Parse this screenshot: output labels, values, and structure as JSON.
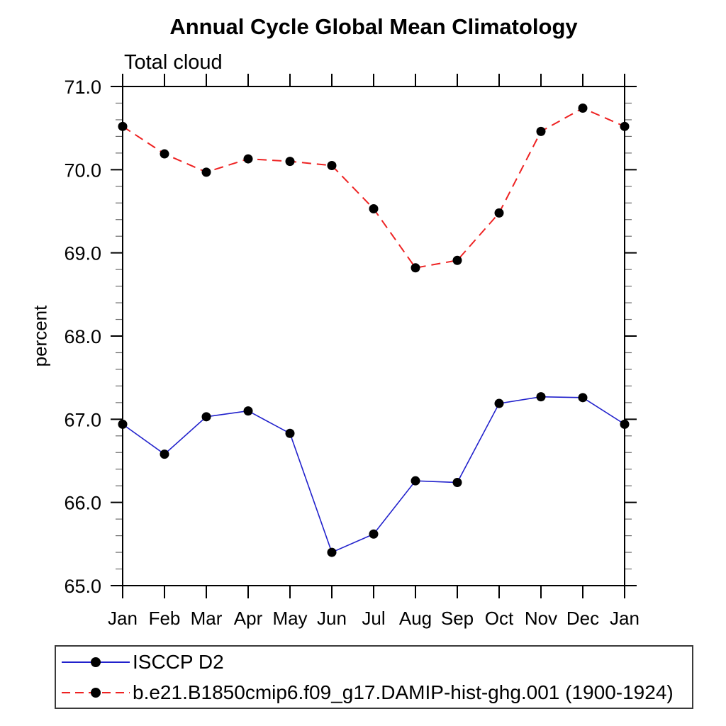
{
  "page": {
    "background": "#ffffff"
  },
  "chart_data": {
    "type": "line",
    "title": "Annual Cycle Global Mean Climatology",
    "subtitle": "Total cloud",
    "xlabel": "",
    "ylabel": "percent",
    "categories": [
      "Jan",
      "Feb",
      "Mar",
      "Apr",
      "May",
      "Jun",
      "Jul",
      "Aug",
      "Sep",
      "Oct",
      "Nov",
      "Dec",
      "Jan"
    ],
    "ylim": [
      65.0,
      71.0
    ],
    "ytick_values": [
      65.0,
      66.0,
      67.0,
      68.0,
      69.0,
      70.0,
      71.0
    ],
    "ytick_labels": [
      "65.0",
      "66.0",
      "67.0",
      "68.0",
      "69.0",
      "70.0",
      "71.0"
    ],
    "ytick_minor_step": 0.2,
    "grid": false,
    "frame": "box",
    "tick_direction": "out",
    "legend_position": "bottom-left-box",
    "series": [
      {
        "name": "ISCCP D2",
        "color": "#2121cc",
        "line_style": "solid",
        "line_width": 1.6,
        "marker": "filled-circle",
        "marker_color": "#000000",
        "values": [
          66.94,
          66.58,
          67.03,
          67.1,
          66.83,
          65.4,
          65.62,
          66.26,
          66.24,
          67.19,
          67.27,
          67.26,
          66.94
        ]
      },
      {
        "name": "b.e21.B1850cmip6.f09_g17.DAMIP-hist-ghg.001 (1900-1924)",
        "color": "#ee2222",
        "line_style": "dashed",
        "line_width": 2,
        "marker": "filled-circle",
        "marker_color": "#000000",
        "values": [
          70.52,
          70.19,
          69.97,
          70.13,
          70.1,
          70.05,
          69.53,
          68.82,
          68.91,
          69.48,
          70.46,
          70.74,
          70.52
        ]
      }
    ]
  }
}
